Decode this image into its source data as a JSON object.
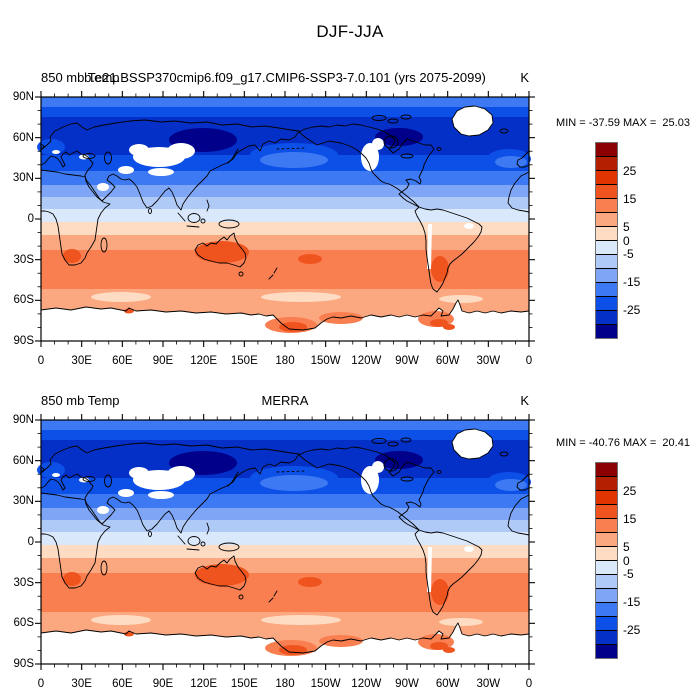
{
  "figure_title": "DJF-JJA",
  "panels": [
    {
      "title_left": "850 mb Temp",
      "title_center": "b.e21.BSSP370cmip6.f09_g17.CMIP6-SSP3-7.0.101 (yrs 2075-2099)",
      "title_right": "K",
      "stats": "MIN = -37.59 MAX =  25.03"
    },
    {
      "title_left": "850 mb Temp",
      "title_center": "MERRA",
      "title_right": "K",
      "stats": "MIN = -40.76 MAX =  20.41"
    }
  ],
  "axes": {
    "lat_labels": [
      "90N",
      "60N",
      "30N",
      "0",
      "30S",
      "60S",
      "90S"
    ],
    "lon_labels": [
      "0",
      "30E",
      "60E",
      "90E",
      "120E",
      "150E",
      "180",
      "150W",
      "120W",
      "90W",
      "60W",
      "30W",
      "0"
    ]
  },
  "colorbar": {
    "colors": [
      "#8B0000",
      "#B22000",
      "#E13400",
      "#F0541E",
      "#F97E50",
      "#FBA880",
      "#FDDCC3",
      "#DAE8FC",
      "#B0CAF8",
      "#7FA6F6",
      "#3D79F2",
      "#0D50E8",
      "#0530C8",
      "#00008B"
    ],
    "tick_labels": [
      {
        "pos": 2,
        "label": "25"
      },
      {
        "pos": 4,
        "label": "15"
      },
      {
        "pos": 6,
        "label": "5"
      },
      {
        "pos": 7,
        "label": "0"
      },
      {
        "pos": 8,
        "label": "-5"
      },
      {
        "pos": 10,
        "label": "-15"
      },
      {
        "pos": 12,
        "label": "-25"
      }
    ]
  },
  "chart_data": [
    {
      "type": "heatmap",
      "subtype": "filled-contour-world-map",
      "title": "b.e21.BSSP370cmip6.f09_g17.CMIP6-SSP3-7.0.101 (yrs 2075-2099)",
      "variable": "850 mb Temp",
      "season_difference": "DJF-JJA",
      "units": "K",
      "min": -37.59,
      "max": 25.03,
      "contour_levels": [
        -30,
        -25,
        -20,
        -15,
        -10,
        -5,
        0,
        5,
        10,
        15,
        20,
        25,
        30
      ],
      "palette_low_to_high": [
        "#00008B",
        "#0530C8",
        "#0D50E8",
        "#3D79F2",
        "#7FA6F6",
        "#B0CAF8",
        "#DAE8FC",
        "#FDDCC3",
        "#FBA880",
        "#F97E50",
        "#F0541E",
        "#E13400",
        "#B22000",
        "#8B0000"
      ],
      "x_tick_labels": [
        "0",
        "30E",
        "60E",
        "90E",
        "120E",
        "150E",
        "180",
        "150W",
        "120W",
        "90W",
        "60W",
        "30W",
        "0"
      ],
      "y_tick_labels": [
        "90N",
        "60N",
        "30N",
        "0",
        "30S",
        "60S",
        "90S"
      ],
      "projection": "cylindrical equidistant, centered on 180 deg",
      "approx_zonal_mean": {
        "lat": [
          80,
          60,
          40,
          20,
          0,
          -20,
          -40,
          -60,
          -75
        ],
        "value_K": [
          -16,
          -28,
          -17,
          -6,
          1,
          9,
          13,
          9,
          12
        ]
      },
      "notable_features": [
        "navy minimum over eastern Siberia",
        "navy minimum over northern Canada",
        "orange-red maximum over Australia",
        "orange-red maxima over southern Africa and Argentina",
        "orange patches along Antarctic coast"
      ],
      "masked_white_regions": [
        "Tibetan Plateau / Central Asia highlands",
        "Greenland",
        "Rocky Mountains",
        "Andes",
        "Antarctica interior"
      ],
      "legend_position": "right vertical colorbar"
    },
    {
      "type": "heatmap",
      "subtype": "filled-contour-world-map",
      "title": "MERRA",
      "variable": "850 mb Temp",
      "season_difference": "DJF-JJA",
      "units": "K",
      "min": -40.76,
      "max": 20.41,
      "contour_levels": [
        -30,
        -25,
        -20,
        -15,
        -10,
        -5,
        0,
        5,
        10,
        15,
        20,
        25,
        30
      ],
      "palette_low_to_high": [
        "#00008B",
        "#0530C8",
        "#0D50E8",
        "#3D79F2",
        "#7FA6F6",
        "#B0CAF8",
        "#DAE8FC",
        "#FDDCC3",
        "#FBA880",
        "#F97E50",
        "#F0541E",
        "#E13400",
        "#B22000",
        "#8B0000"
      ],
      "x_tick_labels": [
        "0",
        "30E",
        "60E",
        "90E",
        "120E",
        "150E",
        "180",
        "150W",
        "120W",
        "90W",
        "60W",
        "30W",
        "0"
      ],
      "y_tick_labels": [
        "90N",
        "60N",
        "30N",
        "0",
        "30S",
        "60S",
        "90S"
      ],
      "projection": "cylindrical equidistant, centered on 180 deg",
      "approx_zonal_mean": {
        "lat": [
          80,
          60,
          40,
          20,
          0,
          -20,
          -40,
          -60,
          -75
        ],
        "value_K": [
          -17,
          -29,
          -18,
          -6,
          1,
          9,
          13,
          9,
          11
        ]
      },
      "notable_features": [
        "navy minimum over eastern Siberia",
        "navy minimum over northern Canada",
        "orange-red maximum over Australia",
        "orange patches along Antarctic coast"
      ],
      "masked_white_regions": [
        "Tibetan Plateau / Central Asia highlands",
        "Greenland",
        "Rocky Mountains",
        "Andes",
        "Antarctica interior"
      ],
      "legend_position": "right vertical colorbar"
    }
  ]
}
